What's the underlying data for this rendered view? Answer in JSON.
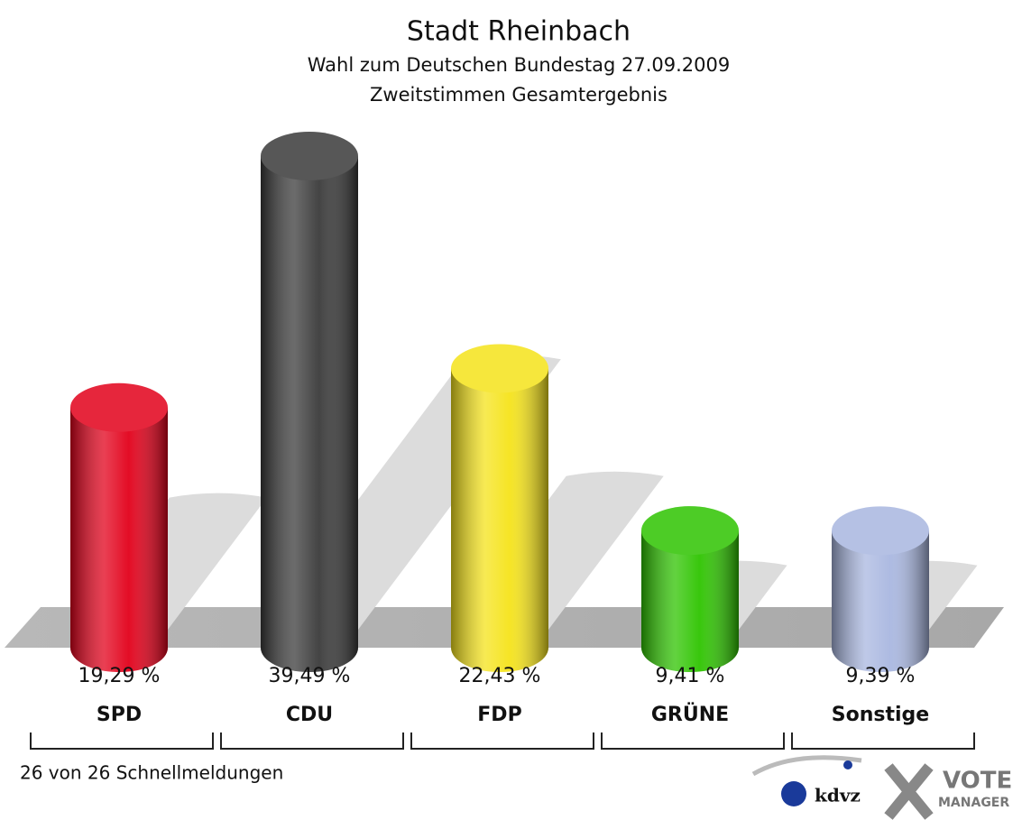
{
  "chart_data": {
    "type": "bar",
    "title": "Stadt Rheinbach",
    "subtitle": [
      "Wahl zum Deutschen Bundestag 27.09.2009",
      "Zweitstimmen Gesamtergebnis"
    ],
    "categories": [
      "SPD",
      "CDU",
      "FDP",
      "GRÜNE",
      "Sonstige"
    ],
    "values": [
      19.29,
      39.49,
      22.43,
      9.41,
      9.39
    ],
    "value_labels": [
      "19,29 %",
      "39,49 %",
      "22,43 %",
      "9,41 %",
      "9,39 %"
    ],
    "colors": [
      "#e2001a",
      "#3a3a3a",
      "#f5e31a",
      "#2ec400",
      "#a9b7e0"
    ],
    "footnote": "26 von 26 Schnellmeldungen",
    "logo": [
      "kdvz",
      "VOTE",
      "MANAGER"
    ]
  }
}
